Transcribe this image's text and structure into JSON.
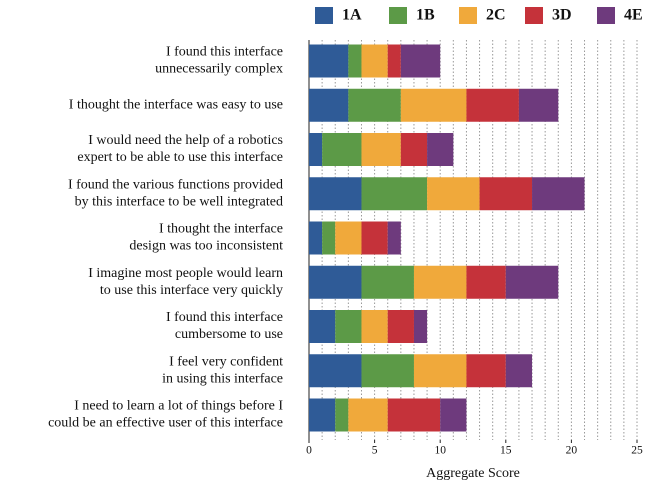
{
  "chart_data": {
    "type": "stacked-barh",
    "categories": [
      [
        "I found this interface",
        "unnecessarily complex"
      ],
      [
        "I thought the interface was easy to use"
      ],
      [
        "I would need the help of a robotics",
        "expert to be able to use this interface"
      ],
      [
        "I found the various functions provided",
        "by this interface to be well integrated"
      ],
      [
        "I thought the interface",
        "design was too inconsistent"
      ],
      [
        "I imagine most people would learn",
        "to use this interface very quickly"
      ],
      [
        "I found this interface",
        "cumbersome to use"
      ],
      [
        "I feel very confident",
        "in using this interface"
      ],
      [
        "I need to learn a lot of things before I",
        "could be an effective user of this interface"
      ]
    ],
    "series": [
      {
        "name": "1A",
        "color": "#2f5b97",
        "values": [
          3,
          3,
          1,
          4,
          1,
          4,
          2,
          4,
          2
        ]
      },
      {
        "name": "1B",
        "color": "#5c9a47",
        "values": [
          1,
          4,
          3,
          5,
          1,
          4,
          2,
          4,
          1
        ]
      },
      {
        "name": "2C",
        "color": "#f0a93b",
        "values": [
          2,
          5,
          3,
          4,
          2,
          4,
          2,
          4,
          3
        ]
      },
      {
        "name": "3D",
        "color": "#c5323a",
        "values": [
          1,
          4,
          2,
          4,
          2,
          3,
          2,
          3,
          4
        ]
      },
      {
        "name": "4E",
        "color": "#6e3a7d",
        "values": [
          3,
          3,
          2,
          4,
          1,
          4,
          1,
          2,
          2
        ]
      }
    ],
    "xlabel": "Aggregate Score",
    "xlim": [
      0,
      25
    ],
    "xticks": [
      0,
      5,
      10,
      15,
      20,
      25
    ],
    "xgrid": [
      1,
      2,
      3,
      4,
      5,
      6,
      7,
      8,
      9,
      10,
      11,
      12,
      13,
      14,
      15,
      16,
      17,
      18,
      19,
      20,
      21,
      22,
      23,
      24,
      25
    ],
    "grid": true,
    "legend": "top"
  }
}
